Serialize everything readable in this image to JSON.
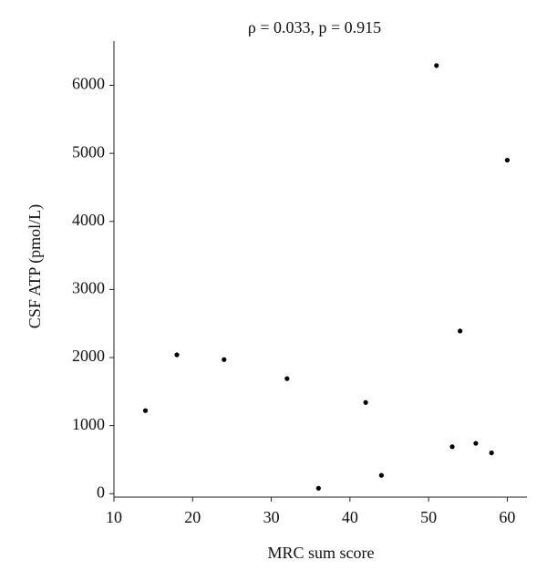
{
  "chart_data": {
    "type": "scatter",
    "title": "ρ = 0.033, p = 0.915",
    "x_label": "MRC sum score",
    "y_label": "CSF ATP (pmol/L)",
    "x": [
      14,
      18,
      24,
      32,
      36,
      42,
      44,
      51,
      53,
      54,
      56,
      58,
      60
    ],
    "values": [
      1220,
      2040,
      1970,
      1690,
      80,
      1340,
      270,
      6290,
      690,
      2390,
      740,
      600,
      4900
    ],
    "color": "#000000",
    "xlim": [
      10,
      62.5
    ],
    "xticks": [
      10,
      20,
      30,
      40,
      50,
      60
    ],
    "ylim": [
      -50,
      6650
    ],
    "yticks": [
      0,
      1000,
      2000,
      3000,
      4000,
      5000,
      6000
    ]
  }
}
